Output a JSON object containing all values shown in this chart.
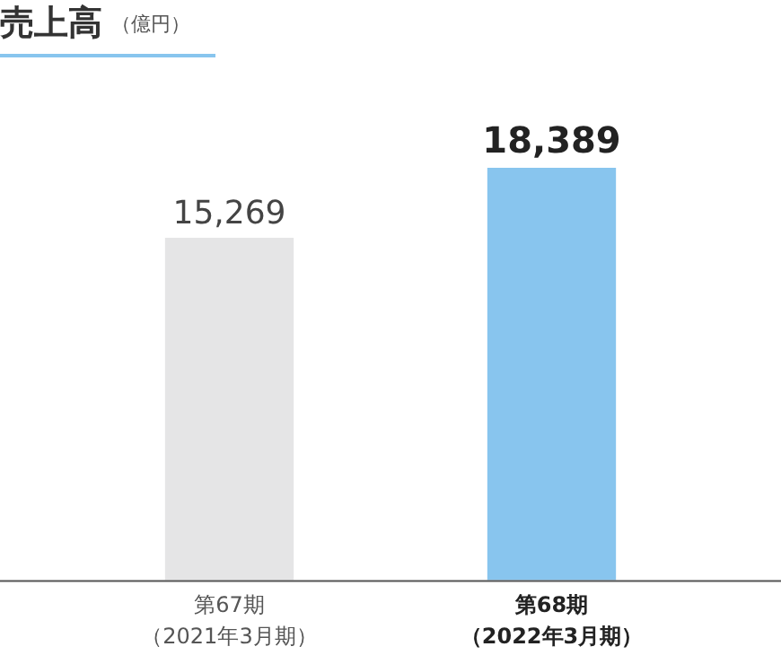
{
  "chart_data": {
    "type": "bar",
    "title": "売上高",
    "subtitle": "（億円）",
    "categories": [
      "第67期（2021年3月期）",
      "第68期（2022年3月期）"
    ],
    "values": [
      15269,
      18389
    ],
    "value_labels": [
      "15,269",
      "18,389"
    ],
    "colors": [
      "#e5e5e6",
      "#88c5ee"
    ],
    "legend": false,
    "grid": false
  }
}
